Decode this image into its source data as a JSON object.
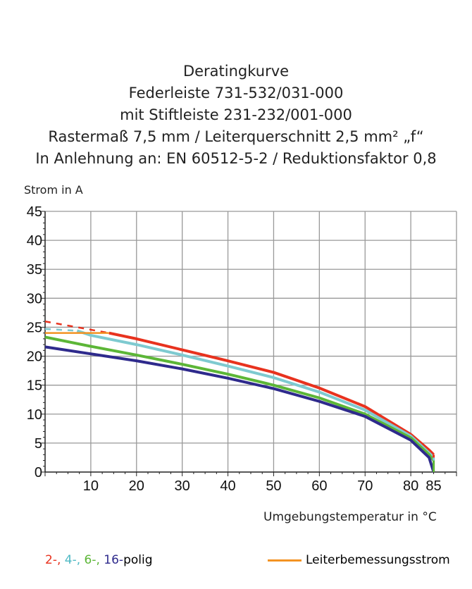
{
  "chart_data": {
    "type": "line",
    "title": [
      "Deratingkurve",
      "Federleiste 731-532/031-000",
      "mit Stiftleiste 231-232/001-000",
      "Rastermaß 7,5 mm / Leiterquerschnitt 2,5 mm² „f“",
      "In Anlehnung an: EN 60512-5-2 / Reduktionsfaktor 0,8"
    ],
    "ylabel": "Strom in A",
    "xlabel": "Umgebungstemperatur in  °C",
    "xlim": [
      0,
      90
    ],
    "ylim": [
      0,
      45
    ],
    "xticks": [
      10,
      20,
      30,
      40,
      50,
      60,
      70,
      80,
      85
    ],
    "yticks": [
      0,
      5,
      10,
      15,
      20,
      25,
      30,
      35,
      40,
      45
    ],
    "grid": true,
    "series": [
      {
        "name": "2-",
        "color": "#e8321e",
        "dashed": {
          "x": [
            0,
            14
          ],
          "y": [
            26,
            24
          ]
        },
        "x": [
          14,
          20,
          30,
          40,
          50,
          60,
          70,
          80,
          84,
          85
        ],
        "y": [
          24,
          23,
          21.1,
          19.2,
          17.2,
          14.5,
          11.3,
          6.5,
          3.8,
          3
        ]
      },
      {
        "name": "4-",
        "color": "#7ecad0",
        "dashed": {
          "x": [
            0,
            7
          ],
          "y": [
            24.7,
            24.4
          ]
        },
        "x": [
          7,
          10,
          20,
          30,
          40,
          50,
          60,
          70,
          80,
          84,
          85
        ],
        "y": [
          24.4,
          23.6,
          22,
          20.2,
          18.3,
          16.3,
          13.8,
          10.7,
          6.2,
          3.3,
          2.5
        ]
      },
      {
        "name": "6-",
        "color": "#5cb637",
        "x": [
          0,
          10,
          20,
          30,
          40,
          50,
          60,
          70,
          80,
          84,
          85
        ],
        "y": [
          23.3,
          21.7,
          20.2,
          18.6,
          16.9,
          15,
          12.8,
          10,
          5.9,
          3,
          2
        ]
      },
      {
        "name": "16-",
        "color": "#2e2a8c",
        "x": [
          0,
          10,
          20,
          30,
          40,
          50,
          60,
          70,
          80,
          84,
          85
        ],
        "y": [
          21.6,
          20.4,
          19.2,
          17.8,
          16.2,
          14.4,
          12.2,
          9.6,
          5.5,
          2.5,
          0
        ]
      },
      {
        "name": "Leiterbemessungsstrom",
        "color": "#f39323",
        "x": [
          0,
          14
        ],
        "y": [
          24,
          24
        ]
      }
    ],
    "legend": {
      "suffix": "polig",
      "rated_label": "Leiterbemessungsstrom",
      "placement": "bottom"
    }
  }
}
